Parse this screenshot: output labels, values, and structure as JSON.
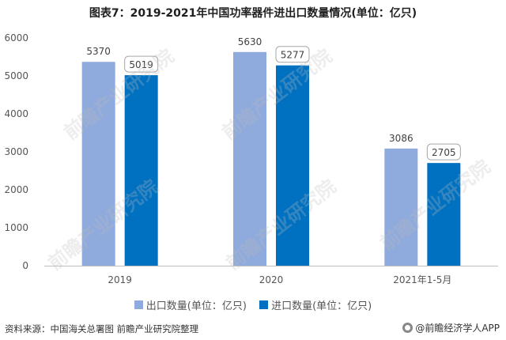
{
  "chart_data": {
    "type": "bar",
    "title": "图表7：2019-2021年中国功率器件进出口数量情况(单位：亿只)",
    "categories": [
      "2019",
      "2020",
      "2021年1-5月"
    ],
    "series": [
      {
        "name": "出口数量(单位：亿只)",
        "values": [
          5370,
          5630,
          3086
        ],
        "color": "#8faadc"
      },
      {
        "name": "进口数量(单位：亿只)",
        "values": [
          5019,
          5277,
          2705
        ],
        "color": "#0070c0"
      }
    ],
    "yticks": [
      "0",
      "1000",
      "2000",
      "3000",
      "4000",
      "5000",
      "6000"
    ],
    "ylim": [
      0,
      6000
    ],
    "xlabel": "",
    "ylabel": "",
    "grid": false,
    "legend_position": "bottom"
  },
  "footer": {
    "source": "资料来源：中国海关总署图 前瞻产业研究院整理",
    "brand": "@前瞻经济学人APP"
  },
  "watermark": "前瞻产业研究院"
}
